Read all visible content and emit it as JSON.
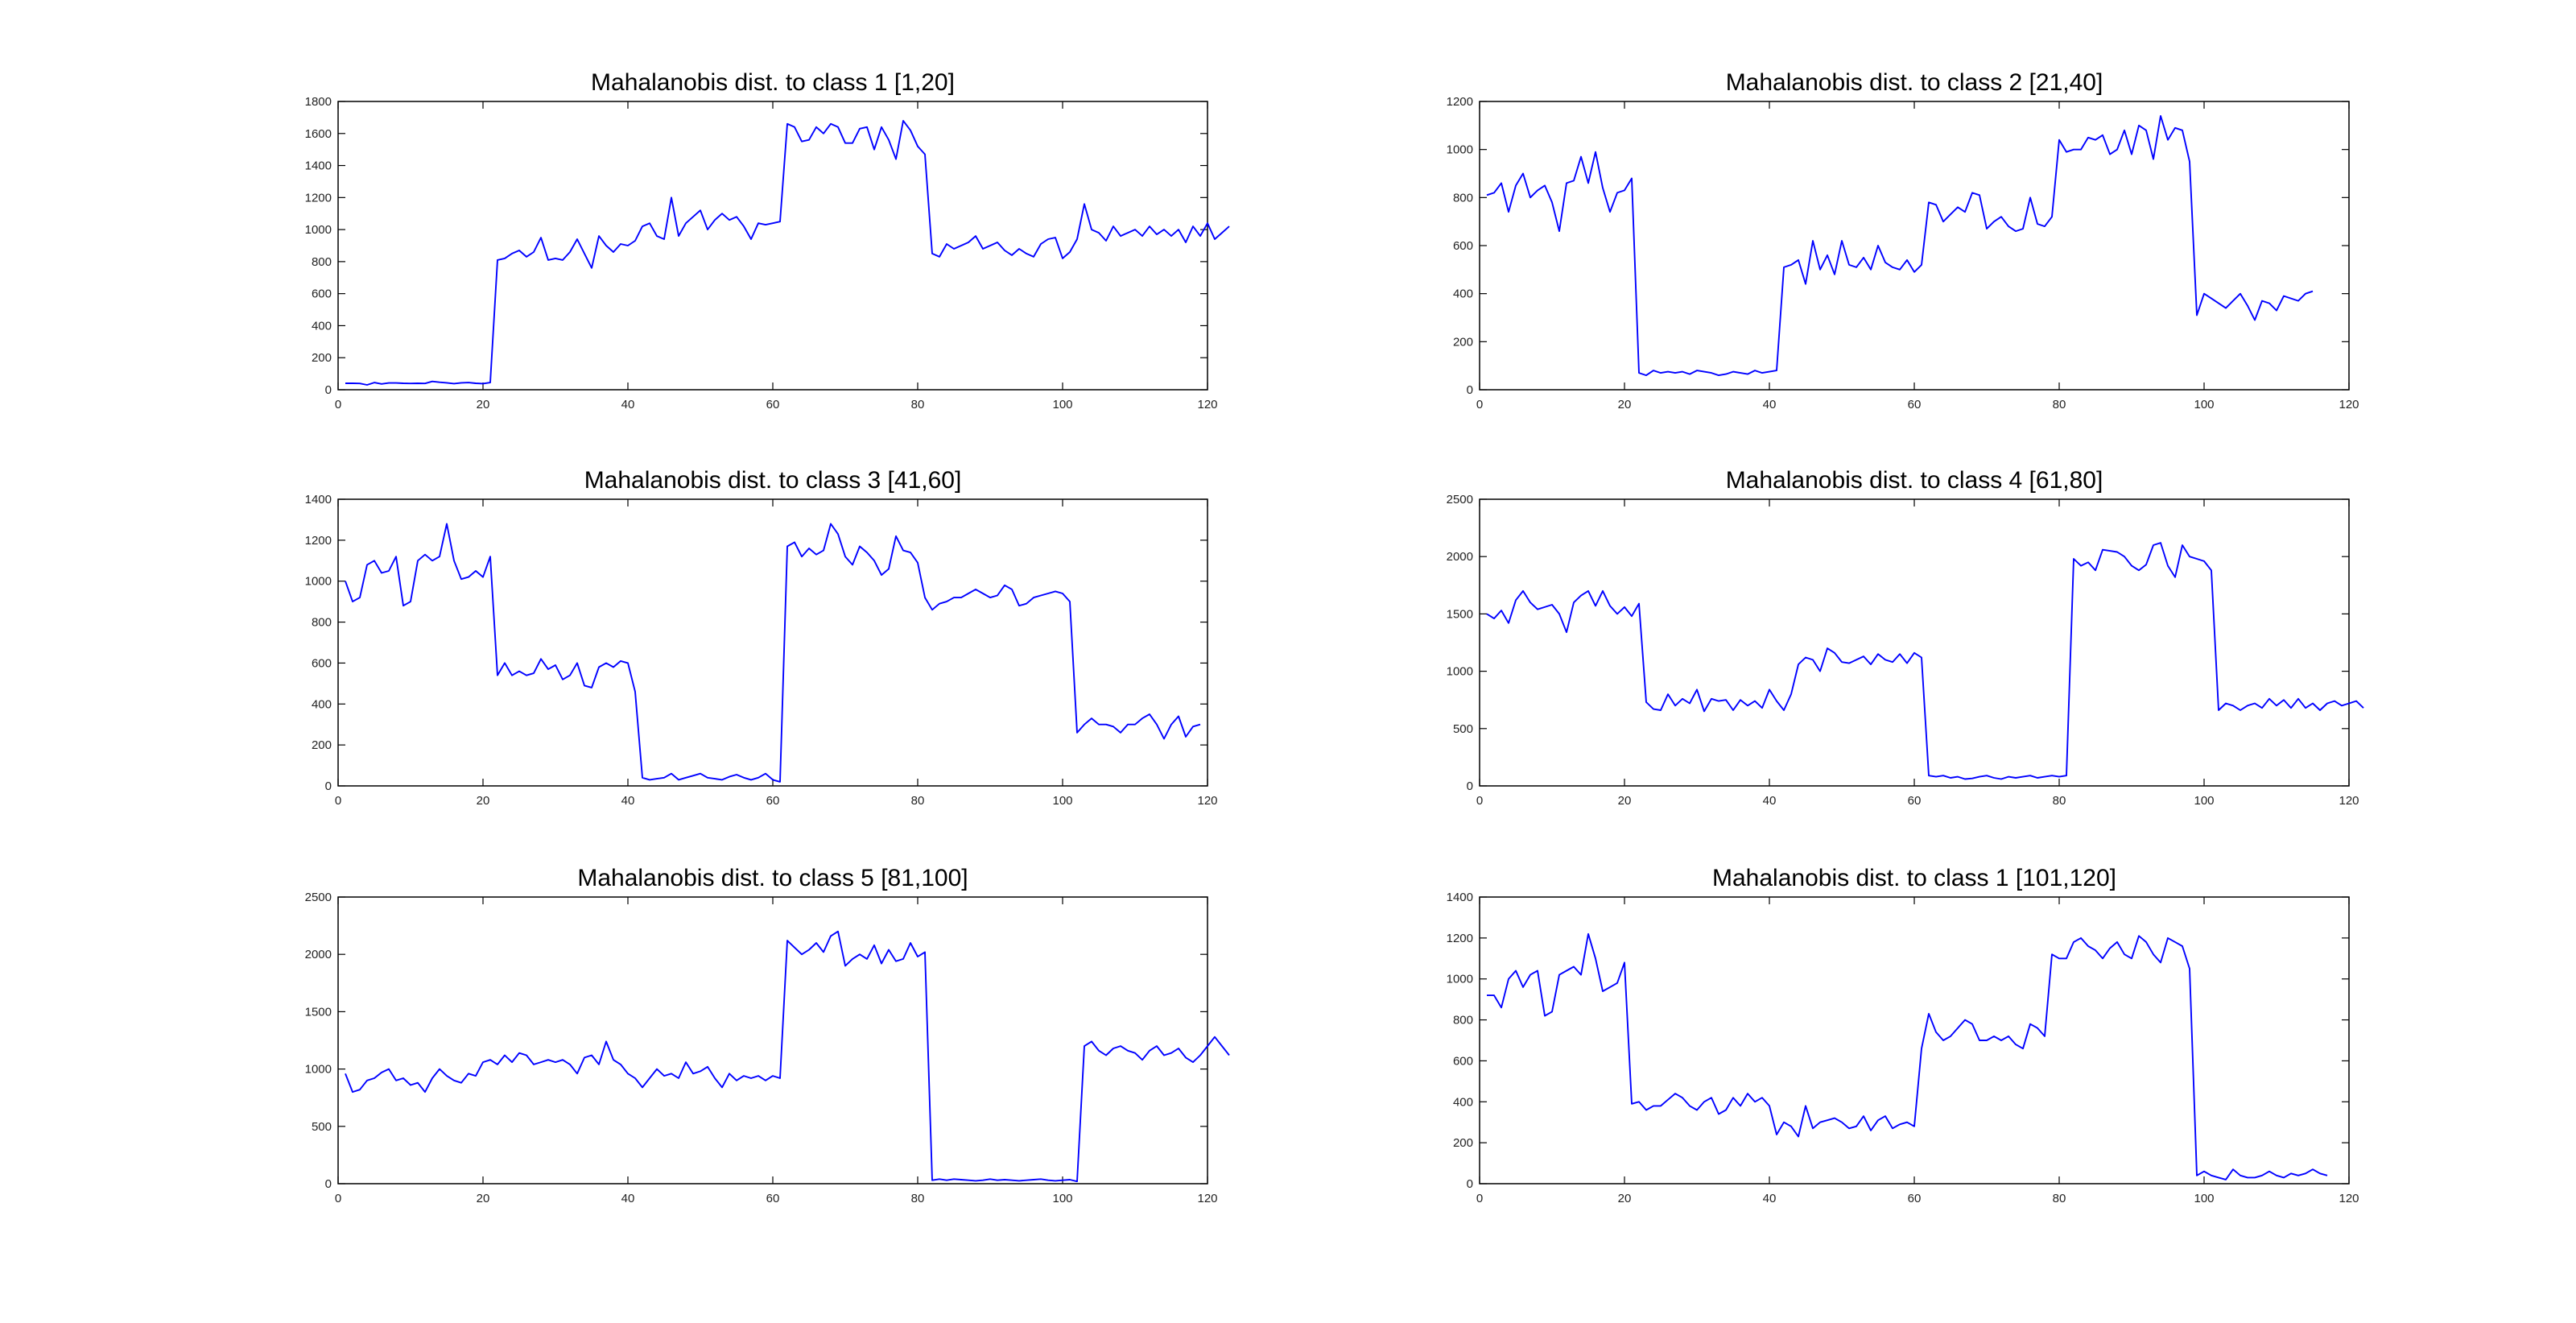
{
  "figure": {
    "background": "#ffffff",
    "line_color": "#0000ff"
  },
  "chart_data": [
    {
      "type": "line",
      "title": "Mahalanobis dist. to class 1 [1,20]",
      "xlim": [
        0,
        120
      ],
      "ylim": [
        0,
        1800
      ],
      "xticks": [
        0,
        20,
        40,
        60,
        80,
        100,
        120
      ],
      "yticks": [
        0,
        200,
        400,
        600,
        800,
        1000,
        1200,
        1400,
        1600,
        1800
      ],
      "x_start": 1,
      "values": [
        40,
        40,
        39,
        30,
        45,
        36,
        42,
        42,
        40,
        39,
        40,
        39,
        52,
        47,
        43,
        38,
        43,
        45,
        40,
        38,
        45,
        810,
        820,
        850,
        870,
        830,
        860,
        950,
        810,
        820,
        810,
        860,
        940,
        850,
        760,
        960,
        900,
        860,
        910,
        900,
        930,
        1020,
        1040,
        960,
        940,
        1200,
        960,
        1040,
        1080,
        1120,
        1000,
        1060,
        1100,
        1060,
        1080,
        1020,
        940,
        1040,
        1030,
        1040,
        1050,
        1660,
        1640,
        1550,
        1560,
        1640,
        1600,
        1660,
        1640,
        1540,
        1540,
        1630,
        1640,
        1500,
        1640,
        1560,
        1440,
        1680,
        1620,
        1520,
        1470,
        850,
        830,
        910,
        880,
        900,
        920,
        960,
        880,
        900,
        920,
        870,
        840,
        880,
        850,
        830,
        910,
        940,
        950,
        820,
        860,
        940,
        1160,
        1000,
        980,
        930,
        1020,
        960,
        980,
        1000,
        960,
        1020,
        970,
        1000,
        960,
        1000,
        920,
        1020,
        960,
        1040,
        940,
        980,
        1020
      ]
    },
    {
      "type": "line",
      "title": "Mahalanobis dist. to class 2 [21,40]",
      "xlim": [
        0,
        120
      ],
      "ylim": [
        0,
        1200
      ],
      "xticks": [
        0,
        20,
        40,
        60,
        80,
        100,
        120
      ],
      "yticks": [
        0,
        200,
        400,
        600,
        800,
        1000,
        1200
      ],
      "x_start": 1,
      "values": [
        810,
        820,
        860,
        740,
        850,
        900,
        800,
        830,
        850,
        780,
        660,
        860,
        870,
        970,
        860,
        990,
        840,
        740,
        820,
        830,
        880,
        70,
        60,
        80,
        70,
        75,
        70,
        75,
        65,
        80,
        75,
        70,
        60,
        65,
        75,
        70,
        65,
        80,
        70,
        75,
        80,
        510,
        520,
        540,
        440,
        620,
        500,
        560,
        480,
        620,
        520,
        510,
        550,
        500,
        600,
        530,
        510,
        500,
        540,
        490,
        520,
        780,
        770,
        700,
        730,
        760,
        740,
        820,
        810,
        670,
        700,
        720,
        680,
        660,
        670,
        800,
        690,
        680,
        720,
        1040,
        990,
        1000,
        1000,
        1050,
        1040,
        1060,
        980,
        1000,
        1080,
        980,
        1100,
        1080,
        960,
        1140,
        1040,
        1090,
        1080,
        950,
        310,
        400,
        380,
        360,
        340,
        370,
        400,
        350,
        290,
        370,
        360,
        330,
        390,
        380,
        370,
        400,
        410
      ]
    },
    {
      "type": "line",
      "title": "Mahalanobis dist. to class 3 [41,60]",
      "xlim": [
        0,
        120
      ],
      "ylim": [
        0,
        1400
      ],
      "xticks": [
        0,
        20,
        40,
        60,
        80,
        100,
        120
      ],
      "yticks": [
        0,
        200,
        400,
        600,
        800,
        1000,
        1200,
        1400
      ],
      "x_start": 1,
      "values": [
        1000,
        900,
        920,
        1080,
        1100,
        1040,
        1050,
        1120,
        880,
        900,
        1100,
        1130,
        1100,
        1120,
        1280,
        1100,
        1010,
        1020,
        1050,
        1020,
        1120,
        540,
        600,
        540,
        560,
        540,
        550,
        620,
        570,
        590,
        520,
        540,
        600,
        490,
        480,
        580,
        600,
        580,
        610,
        600,
        460,
        40,
        30,
        35,
        40,
        60,
        30,
        40,
        50,
        60,
        40,
        35,
        30,
        45,
        55,
        40,
        30,
        40,
        60,
        30,
        20,
        1170,
        1190,
        1120,
        1160,
        1130,
        1150,
        1280,
        1230,
        1120,
        1080,
        1170,
        1140,
        1100,
        1030,
        1060,
        1220,
        1150,
        1140,
        1090,
        920,
        860,
        890,
        900,
        920,
        920,
        940,
        960,
        940,
        920,
        930,
        980,
        960,
        880,
        890,
        920,
        930,
        940,
        950,
        940,
        900,
        260,
        300,
        330,
        300,
        300,
        290,
        260,
        300,
        300,
        330,
        350,
        300,
        230,
        300,
        340,
        240,
        290,
        300
      ]
    },
    {
      "type": "line",
      "title": "Mahalanobis dist. to class 4 [61,80]",
      "xlim": [
        0,
        120
      ],
      "ylim": [
        0,
        2500
      ],
      "xticks": [
        0,
        20,
        40,
        60,
        80,
        100,
        120
      ],
      "yticks": [
        0,
        500,
        1000,
        1500,
        2000,
        2500
      ],
      "x_start": 1,
      "values": [
        1500,
        1460,
        1530,
        1420,
        1620,
        1700,
        1600,
        1540,
        1560,
        1580,
        1500,
        1340,
        1600,
        1660,
        1700,
        1570,
        1700,
        1570,
        1500,
        1560,
        1480,
        1590,
        730,
        670,
        660,
        800,
        700,
        760,
        720,
        840,
        650,
        760,
        740,
        750,
        660,
        750,
        700,
        740,
        680,
        840,
        740,
        660,
        800,
        1060,
        1120,
        1100,
        1000,
        1200,
        1160,
        1080,
        1070,
        1100,
        1130,
        1060,
        1150,
        1100,
        1080,
        1150,
        1070,
        1160,
        1120,
        90,
        80,
        90,
        70,
        80,
        60,
        65,
        80,
        90,
        70,
        60,
        80,
        70,
        80,
        90,
        70,
        80,
        90,
        80,
        90,
        1980,
        1920,
        1950,
        1880,
        2060,
        2050,
        2040,
        2000,
        1920,
        1880,
        1930,
        2100,
        2120,
        1920,
        1820,
        2100,
        2000,
        1980,
        1960,
        1880,
        660,
        720,
        700,
        660,
        700,
        720,
        680,
        760,
        700,
        750,
        680,
        760,
        680,
        720,
        660,
        720,
        740,
        700,
        720,
        740,
        680
      ]
    },
    {
      "type": "line",
      "title": "Mahalanobis dist. to class 5 [81,100]",
      "xlim": [
        0,
        120
      ],
      "ylim": [
        0,
        2500
      ],
      "xticks": [
        0,
        20,
        40,
        60,
        80,
        100,
        120
      ],
      "yticks": [
        0,
        500,
        1000,
        1500,
        2000,
        2500
      ],
      "x_start": 1,
      "values": [
        960,
        800,
        820,
        900,
        920,
        970,
        1000,
        900,
        920,
        860,
        880,
        800,
        920,
        1000,
        940,
        900,
        880,
        960,
        940,
        1060,
        1080,
        1040,
        1120,
        1060,
        1140,
        1120,
        1040,
        1060,
        1080,
        1060,
        1080,
        1040,
        960,
        1100,
        1120,
        1040,
        1240,
        1080,
        1040,
        960,
        920,
        840,
        920,
        1000,
        940,
        960,
        920,
        1060,
        960,
        980,
        1020,
        920,
        840,
        960,
        900,
        940,
        920,
        940,
        900,
        940,
        920,
        2120,
        2060,
        2000,
        2040,
        2100,
        2020,
        2160,
        2200,
        1900,
        1960,
        2000,
        1960,
        2080,
        1920,
        2040,
        1940,
        1960,
        2100,
        1980,
        2020,
        30,
        40,
        30,
        40,
        35,
        30,
        25,
        30,
        40,
        30,
        35,
        30,
        25,
        30,
        35,
        40,
        30,
        25,
        30,
        35,
        20,
        1200,
        1240,
        1160,
        1120,
        1180,
        1200,
        1160,
        1140,
        1080,
        1160,
        1200,
        1120,
        1140,
        1180,
        1100,
        1060,
        1120,
        1200,
        1280,
        1200,
        1120
      ]
    },
    {
      "type": "line",
      "title": "Mahalanobis dist. to class 1 [101,120]",
      "xlim": [
        0,
        120
      ],
      "ylim": [
        0,
        1400
      ],
      "xticks": [
        0,
        20,
        40,
        60,
        80,
        100,
        120
      ],
      "yticks": [
        0,
        200,
        400,
        600,
        800,
        1000,
        1200,
        1400
      ],
      "x_start": 1,
      "values": [
        920,
        920,
        860,
        1000,
        1040,
        960,
        1020,
        1040,
        820,
        840,
        1020,
        1040,
        1060,
        1020,
        1220,
        1100,
        940,
        960,
        980,
        1080,
        390,
        400,
        360,
        380,
        380,
        410,
        440,
        420,
        380,
        360,
        400,
        420,
        340,
        360,
        420,
        380,
        440,
        400,
        420,
        380,
        240,
        300,
        280,
        230,
        380,
        270,
        300,
        310,
        320,
        300,
        270,
        280,
        330,
        260,
        310,
        330,
        270,
        290,
        300,
        280,
        660,
        830,
        740,
        700,
        720,
        760,
        800,
        780,
        700,
        700,
        720,
        700,
        720,
        680,
        660,
        780,
        760,
        720,
        1120,
        1100,
        1100,
        1180,
        1200,
        1160,
        1140,
        1100,
        1150,
        1180,
        1120,
        1100,
        1210,
        1180,
        1120,
        1080,
        1200,
        1180,
        1160,
        1050,
        40,
        60,
        40,
        30,
        20,
        70,
        40,
        30,
        30,
        40,
        60,
        40,
        30,
        50,
        40,
        50,
        70,
        50,
        40
      ]
    }
  ]
}
